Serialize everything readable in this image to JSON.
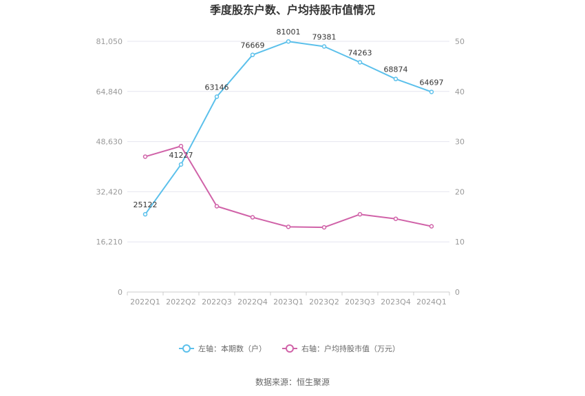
{
  "chart_data": {
    "type": "line",
    "title": "季度股东户数、户均持股市值情况",
    "categories": [
      "2022Q1",
      "2022Q2",
      "2022Q3",
      "2022Q4",
      "2023Q1",
      "2023Q2",
      "2023Q3",
      "2023Q4",
      "2024Q1"
    ],
    "left_axis": {
      "ticks": [
        "0",
        "16,210",
        "32,420",
        "48,630",
        "64,840",
        "81,050"
      ],
      "ylim": [
        0,
        81050
      ]
    },
    "right_axis": {
      "ticks": [
        "0",
        "10",
        "20",
        "30",
        "40",
        "50"
      ],
      "ylim": [
        0,
        50
      ]
    },
    "grid": true,
    "legend_position": "bottom",
    "series": [
      {
        "name": "左轴：本期数（户）",
        "axis": "left",
        "color": "#5bc0eb",
        "values": [
          25122,
          41227,
          63146,
          76669,
          81001,
          79381,
          74263,
          68874,
          64697
        ],
        "labels": [
          "25122",
          "41227",
          "63146",
          "76669",
          "81001",
          "79381",
          "74263",
          "68874",
          "64697"
        ]
      },
      {
        "name": "右轴：户均持股市值（万元）",
        "axis": "right",
        "color": "#d062a8",
        "values": [
          27.0,
          29.1,
          17.1,
          14.9,
          13.0,
          12.9,
          15.5,
          14.6,
          13.1
        ]
      }
    ],
    "source": "数据来源：恒生聚源"
  }
}
